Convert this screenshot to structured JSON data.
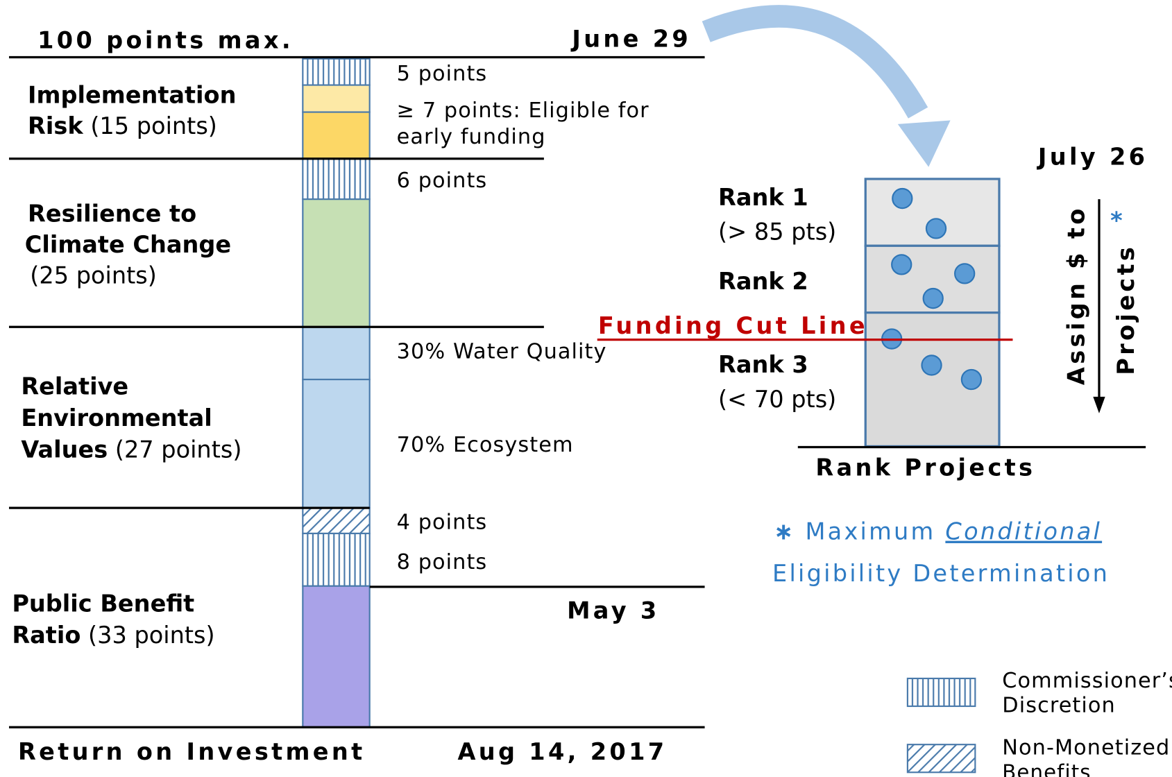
{
  "header": {
    "left": "100 points max.",
    "right": "June 29"
  },
  "sections": [
    {
      "title": [
        "Implementation",
        "Risk"
      ],
      "points": "(15 points)"
    },
    {
      "title": [
        "Resilience to",
        "Climate Change"
      ],
      "points": "(25 points)"
    },
    {
      "title": [
        "Relative",
        "Environmental",
        "Values"
      ],
      "points": "(27 points)"
    },
    {
      "title": [
        "Public Benefit",
        "Ratio"
      ],
      "points": "(33 points)"
    }
  ],
  "notes": [
    "5 points",
    "≥ 7 points: Eligible for",
    "early funding",
    "6 points",
    "30% Water Quality",
    "70% Ecosystem",
    "4 points",
    "8 points"
  ],
  "mid_date": "May 3",
  "footer": {
    "left": "Return on Investment",
    "right": "Aug 14, 2017"
  },
  "ranking": {
    "date": "July 26",
    "ranks": [
      {
        "label": "Rank 1",
        "range": "(> 85 pts)"
      },
      {
        "label": "Rank 2"
      },
      {
        "label": "Rank 3",
        "range": "(< 70 pts)"
      }
    ],
    "cut_line": "Funding Cut Line",
    "axis_label": "Rank Projects",
    "assign": [
      "Assign $ to",
      "Projects"
    ],
    "asterisk": "*"
  },
  "footnote": {
    "mark": "∗",
    "lead": "Maximum",
    "emphasis": "Conditional",
    "rest": "Eligibility Determination"
  },
  "legend": [
    {
      "label": [
        "Commissioner’s",
        "Discretion"
      ]
    },
    {
      "label": [
        "Non-Monetized",
        "Benefits"
      ]
    }
  ]
}
